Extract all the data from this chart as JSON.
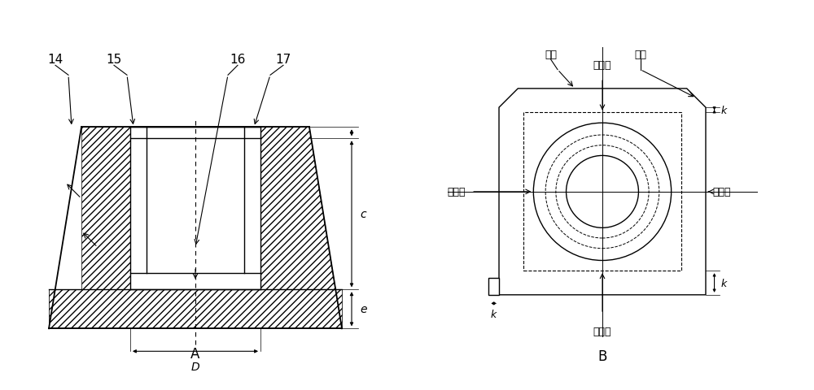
{
  "bg_color": "#ffffff",
  "line_color": "#000000",
  "label_A": "A",
  "label_B": "B",
  "labels_14_17": [
    "14",
    "15",
    "16",
    "17"
  ],
  "dim_c": "c",
  "dim_e": "e",
  "dim_D": "D",
  "dim_k": "k",
  "label_shanbian": "上边",
  "label_xiabian": "下边",
  "label_zuocebi": "左侧壁",
  "label_neibi": "内侧壁",
  "label_waibi": "外侧壁",
  "label_youcebi": "右侧壁"
}
